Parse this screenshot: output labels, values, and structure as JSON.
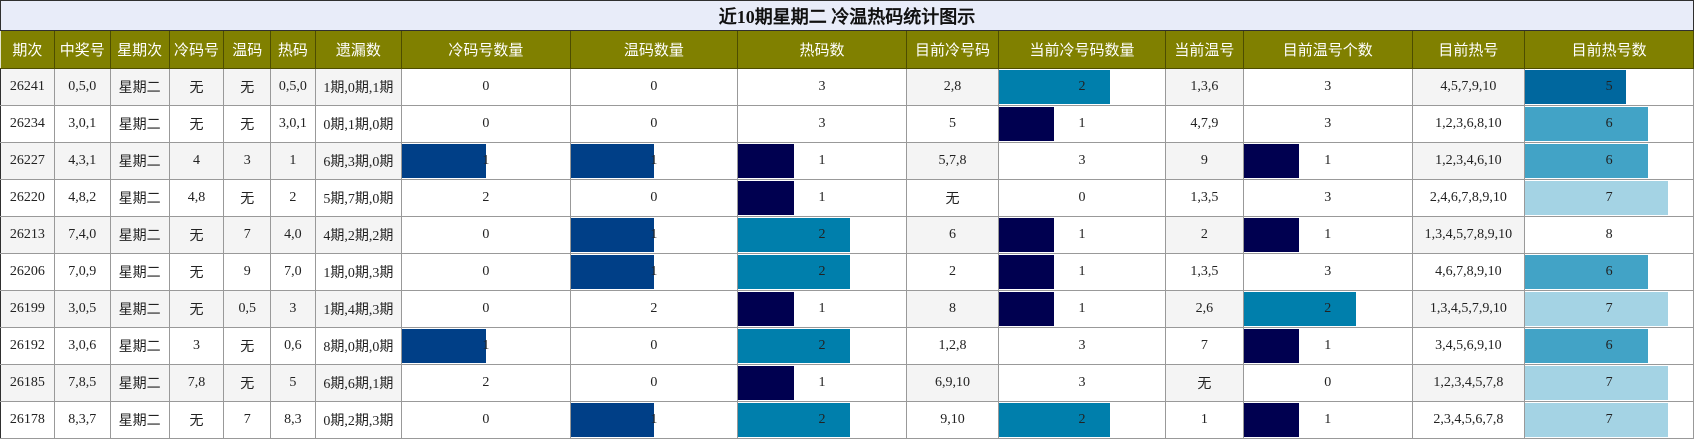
{
  "title": "近10期星期二 冷温热码统计图示",
  "headers": [
    "期次",
    "中奖号",
    "星期次",
    "冷码号",
    "温码",
    "热码",
    "遗漏数",
    "冷码号数量",
    "温码数量",
    "热码数",
    "目前冷号码",
    "当前冷号码数量",
    "当前温号",
    "目前温号个数",
    "目前热号",
    "目前热号数"
  ],
  "bar_colors": {
    "cold_count": "#003f87",
    "warm_count": "#003f87",
    "hot_1": "#000050",
    "hot_2": "#007fac",
    "cur_cold_1": "#000050",
    "cur_cold_2": "#007fac",
    "cur_warm_1": "#000050",
    "cur_warm_2": "#007fac",
    "cur_hot_5": "#00679e",
    "cur_hot_6": "#42a3c6",
    "cur_hot_7": "#a4d3e4",
    "header_bg": "#808000",
    "title_bg": "#e8ecf9"
  },
  "rows": [
    {
      "issue": "26241",
      "win": "0,5,0",
      "weekday": "星期二",
      "cold": "无",
      "warm": "无",
      "hot": "0,5,0",
      "miss": "1期,0期,1期",
      "cold_cnt": 0,
      "warm_cnt": 0,
      "hot_cnt": 3,
      "cur_cold": "2,8",
      "cur_cold_cnt": 2,
      "cur_warm": "1,3,6",
      "cur_warm_cnt": 3,
      "cur_hot": "4,5,7,9,10",
      "cur_hot_cnt": 5
    },
    {
      "issue": "26234",
      "win": "3,0,1",
      "weekday": "星期二",
      "cold": "无",
      "warm": "无",
      "hot": "3,0,1",
      "miss": "0期,1期,0期",
      "cold_cnt": 0,
      "warm_cnt": 0,
      "hot_cnt": 3,
      "cur_cold": "5",
      "cur_cold_cnt": 1,
      "cur_warm": "4,7,9",
      "cur_warm_cnt": 3,
      "cur_hot": "1,2,3,6,8,10",
      "cur_hot_cnt": 6
    },
    {
      "issue": "26227",
      "win": "4,3,1",
      "weekday": "星期二",
      "cold": "4",
      "warm": "3",
      "hot": "1",
      "miss": "6期,3期,0期",
      "cold_cnt": 1,
      "warm_cnt": 1,
      "hot_cnt": 1,
      "cur_cold": "5,7,8",
      "cur_cold_cnt": 3,
      "cur_warm": "9",
      "cur_warm_cnt": 1,
      "cur_hot": "1,2,3,4,6,10",
      "cur_hot_cnt": 6
    },
    {
      "issue": "26220",
      "win": "4,8,2",
      "weekday": "星期二",
      "cold": "4,8",
      "warm": "无",
      "hot": "2",
      "miss": "5期,7期,0期",
      "cold_cnt": 2,
      "warm_cnt": 0,
      "hot_cnt": 1,
      "cur_cold": "无",
      "cur_cold_cnt": 0,
      "cur_warm": "1,3,5",
      "cur_warm_cnt": 3,
      "cur_hot": "2,4,6,7,8,9,10",
      "cur_hot_cnt": 7
    },
    {
      "issue": "26213",
      "win": "7,4,0",
      "weekday": "星期二",
      "cold": "无",
      "warm": "7",
      "hot": "4,0",
      "miss": "4期,2期,2期",
      "cold_cnt": 0,
      "warm_cnt": 1,
      "hot_cnt": 2,
      "cur_cold": "6",
      "cur_cold_cnt": 1,
      "cur_warm": "2",
      "cur_warm_cnt": 1,
      "cur_hot": "1,3,4,5,7,8,9,10",
      "cur_hot_cnt": 8
    },
    {
      "issue": "26206",
      "win": "7,0,9",
      "weekday": "星期二",
      "cold": "无",
      "warm": "9",
      "hot": "7,0",
      "miss": "1期,0期,3期",
      "cold_cnt": 0,
      "warm_cnt": 1,
      "hot_cnt": 2,
      "cur_cold": "2",
      "cur_cold_cnt": 1,
      "cur_warm": "1,3,5",
      "cur_warm_cnt": 3,
      "cur_hot": "4,6,7,8,9,10",
      "cur_hot_cnt": 6
    },
    {
      "issue": "26199",
      "win": "3,0,5",
      "weekday": "星期二",
      "cold": "无",
      "warm": "0,5",
      "hot": "3",
      "miss": "1期,4期,3期",
      "cold_cnt": 0,
      "warm_cnt": 2,
      "hot_cnt": 1,
      "cur_cold": "8",
      "cur_cold_cnt": 1,
      "cur_warm": "2,6",
      "cur_warm_cnt": 2,
      "cur_hot": "1,3,4,5,7,9,10",
      "cur_hot_cnt": 7
    },
    {
      "issue": "26192",
      "win": "3,0,6",
      "weekday": "星期二",
      "cold": "3",
      "warm": "无",
      "hot": "0,6",
      "miss": "8期,0期,0期",
      "cold_cnt": 1,
      "warm_cnt": 0,
      "hot_cnt": 2,
      "cur_cold": "1,2,8",
      "cur_cold_cnt": 3,
      "cur_warm": "7",
      "cur_warm_cnt": 1,
      "cur_hot": "3,4,5,6,9,10",
      "cur_hot_cnt": 6
    },
    {
      "issue": "26185",
      "win": "7,8,5",
      "weekday": "星期二",
      "cold": "7,8",
      "warm": "无",
      "hot": "5",
      "miss": "6期,6期,1期",
      "cold_cnt": 2,
      "warm_cnt": 0,
      "hot_cnt": 1,
      "cur_cold": "6,9,10",
      "cur_cold_cnt": 3,
      "cur_warm": "无",
      "cur_warm_cnt": 0,
      "cur_hot": "1,2,3,4,5,7,8",
      "cur_hot_cnt": 7
    },
    {
      "issue": "26178",
      "win": "8,3,7",
      "weekday": "星期二",
      "cold": "无",
      "warm": "7",
      "hot": "8,3",
      "miss": "0期,2期,3期",
      "cold_cnt": 0,
      "warm_cnt": 1,
      "hot_cnt": 2,
      "cur_cold": "9,10",
      "cur_cold_cnt": 2,
      "cur_warm": "1",
      "cur_warm_cnt": 1,
      "cur_hot": "2,3,4,5,6,7,8",
      "cur_hot_cnt": 7
    }
  ]
}
